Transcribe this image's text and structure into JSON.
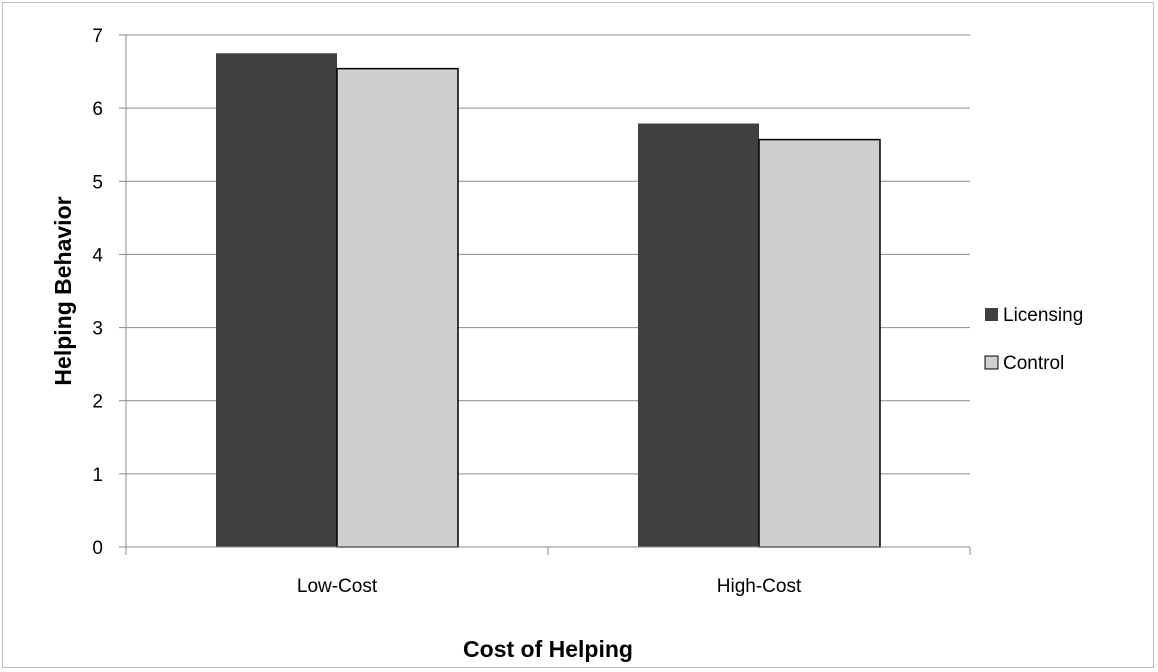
{
  "chart_data": {
    "type": "bar",
    "title": "",
    "xlabel": "Cost of Helping",
    "ylabel": "Helping Behavior",
    "categories": [
      "Low-Cost",
      "High-Cost"
    ],
    "series": [
      {
        "name": "Licensing",
        "values": [
          6.75,
          5.79
        ],
        "color": "#404040"
      },
      {
        "name": "Control",
        "values": [
          6.54,
          5.57
        ],
        "color": "#d0cece"
      }
    ],
    "ylim": [
      0,
      7
    ],
    "yticks": [
      0,
      1,
      2,
      3,
      4,
      5,
      6,
      7
    ],
    "grid": true,
    "legend_position": "right"
  }
}
